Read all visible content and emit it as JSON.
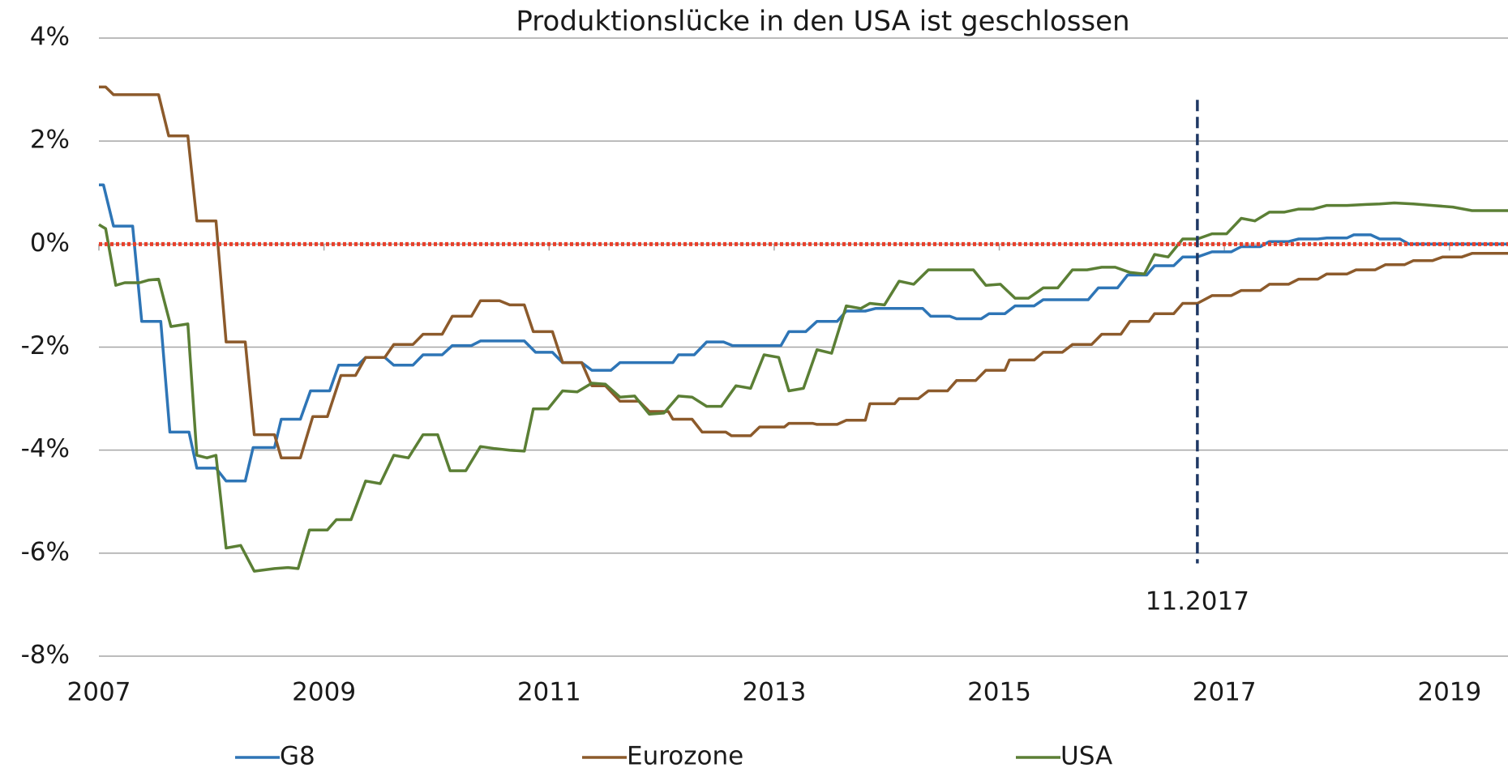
{
  "chart_data": {
    "type": "line",
    "title": "Produktionslücke in den USA ist geschlossen",
    "xlim": [
      2007,
      2019.52
    ],
    "xticks": [
      2007,
      2009,
      2011,
      2013,
      2015,
      2017,
      2019
    ],
    "ylim": [
      -8,
      4
    ],
    "yticks": [
      {
        "value": -8,
        "label": "-8%"
      },
      {
        "value": -6,
        "label": "-6%"
      },
      {
        "value": -4,
        "label": "-4%"
      },
      {
        "value": -2,
        "label": "-2%"
      },
      {
        "value": 0,
        "label": "0%"
      },
      {
        "value": 2,
        "label": "2%"
      },
      {
        "value": 4,
        "label": "4%"
      }
    ],
    "grid": true,
    "reference_line": {
      "y": 0,
      "color": "#e8402b"
    },
    "annotation": {
      "text": "11.2017",
      "x": 2016.76,
      "y": [
        -6.2,
        2.8
      ],
      "color": "#1f3864"
    },
    "series": [
      {
        "name": "G8",
        "color": "#2e75b6",
        "x": [
          2007.0,
          2007.04,
          2007.13,
          2007.3,
          2007.38,
          2007.55,
          2007.63,
          2007.8,
          2007.87,
          2008.04,
          2008.13,
          2008.3,
          2008.37,
          2008.56,
          2008.62,
          2008.79,
          2008.88,
          2009.05,
          2009.13,
          2009.3,
          2009.37,
          2009.54,
          2009.62,
          2009.79,
          2009.88,
          2010.05,
          2010.14,
          2010.31,
          2010.39,
          2010.78,
          2010.88,
          2011.03,
          2011.12,
          2011.29,
          2011.38,
          2011.55,
          2011.63,
          2012.1,
          2012.15,
          2012.29,
          2012.4,
          2012.55,
          2012.63,
          2013.06,
          2013.13,
          2013.28,
          2013.38,
          2013.56,
          2013.64,
          2013.81,
          2013.9,
          2014.32,
          2014.39,
          2014.56,
          2014.62,
          2014.84,
          2014.91,
          2015.05,
          2015.14,
          2015.31,
          2015.39,
          2015.79,
          2015.88,
          2016.05,
          2016.14,
          2016.31,
          2016.38,
          2016.55,
          2016.63,
          2016.76,
          2016.89,
          2017.06,
          2017.15,
          2017.32,
          2017.4,
          2017.57,
          2017.66,
          2017.83,
          2017.91,
          2018.09,
          2018.15,
          2018.3,
          2018.38,
          2018.56,
          2018.64,
          2019.52
        ],
        "values": [
          1.15,
          1.15,
          0.35,
          0.35,
          -1.5,
          -1.5,
          -3.65,
          -3.65,
          -4.35,
          -4.35,
          -4.6,
          -4.6,
          -3.95,
          -3.95,
          -3.4,
          -3.4,
          -2.85,
          -2.85,
          -2.35,
          -2.35,
          -2.2,
          -2.2,
          -2.35,
          -2.35,
          -2.15,
          -2.15,
          -1.97,
          -1.97,
          -1.88,
          -1.88,
          -2.1,
          -2.1,
          -2.3,
          -2.3,
          -2.45,
          -2.45,
          -2.3,
          -2.3,
          -2.15,
          -2.15,
          -1.9,
          -1.9,
          -1.97,
          -1.97,
          -1.7,
          -1.7,
          -1.5,
          -1.5,
          -1.3,
          -1.3,
          -1.25,
          -1.25,
          -1.4,
          -1.4,
          -1.45,
          -1.45,
          -1.35,
          -1.35,
          -1.2,
          -1.2,
          -1.08,
          -1.08,
          -0.85,
          -0.85,
          -0.6,
          -0.6,
          -0.42,
          -0.42,
          -0.25,
          -0.25,
          -0.15,
          -0.15,
          -0.05,
          -0.05,
          0.05,
          0.05,
          0.1,
          0.1,
          0.12,
          0.12,
          0.18,
          0.18,
          0.1,
          0.1,
          0,
          0
        ]
      },
      {
        "name": "Eurozone",
        "color": "#8c5a2b",
        "x": [
          2007.0,
          2007.06,
          2007.13,
          2007.53,
          2007.62,
          2007.79,
          2007.87,
          2008.04,
          2008.13,
          2008.3,
          2008.38,
          2008.56,
          2008.62,
          2008.79,
          2008.9,
          2009.03,
          2009.15,
          2009.28,
          2009.37,
          2009.54,
          2009.62,
          2009.79,
          2009.88,
          2010.05,
          2010.14,
          2010.31,
          2010.39,
          2010.56,
          2010.65,
          2010.78,
          2010.86,
          2011.03,
          2011.12,
          2011.29,
          2011.38,
          2011.5,
          2011.63,
          2011.8,
          2011.89,
          2012.06,
          2012.1,
          2012.27,
          2012.36,
          2012.57,
          2012.62,
          2012.79,
          2012.87,
          2013.09,
          2013.13,
          2013.34,
          2013.38,
          2013.56,
          2013.64,
          2013.81,
          2013.85,
          2014.07,
          2014.11,
          2014.28,
          2014.37,
          2014.54,
          2014.62,
          2014.79,
          2014.88,
          2015.05,
          2015.09,
          2015.31,
          2015.39,
          2015.56,
          2015.65,
          2015.82,
          2015.91,
          2016.08,
          2016.16,
          2016.33,
          2016.38,
          2016.55,
          2016.63,
          2016.76,
          2016.89,
          2017.06,
          2017.15,
          2017.32,
          2017.4,
          2017.57,
          2017.66,
          2017.83,
          2017.91,
          2018.09,
          2018.17,
          2018.34,
          2018.43,
          2018.6,
          2018.68,
          2018.85,
          2018.94,
          2019.11,
          2019.2,
          2019.52
        ],
        "values": [
          3.05,
          3.05,
          2.9,
          2.9,
          2.1,
          2.1,
          0.45,
          0.45,
          -1.9,
          -1.9,
          -3.7,
          -3.7,
          -4.15,
          -4.15,
          -3.35,
          -3.35,
          -2.55,
          -2.55,
          -2.2,
          -2.2,
          -1.95,
          -1.95,
          -1.75,
          -1.75,
          -1.4,
          -1.4,
          -1.1,
          -1.1,
          -1.18,
          -1.18,
          -1.7,
          -1.7,
          -2.3,
          -2.3,
          -2.75,
          -2.75,
          -3.05,
          -3.05,
          -3.25,
          -3.25,
          -3.4,
          -3.4,
          -3.65,
          -3.65,
          -3.72,
          -3.72,
          -3.55,
          -3.55,
          -3.48,
          -3.48,
          -3.5,
          -3.5,
          -3.42,
          -3.42,
          -3.1,
          -3.1,
          -3.0,
          -3.0,
          -2.85,
          -2.85,
          -2.65,
          -2.65,
          -2.45,
          -2.45,
          -2.25,
          -2.25,
          -2.1,
          -2.1,
          -1.95,
          -1.95,
          -1.75,
          -1.75,
          -1.5,
          -1.5,
          -1.35,
          -1.35,
          -1.15,
          -1.15,
          -1.0,
          -1.0,
          -0.9,
          -0.9,
          -0.78,
          -0.78,
          -0.68,
          -0.68,
          -0.58,
          -0.58,
          -0.5,
          -0.5,
          -0.4,
          -0.4,
          -0.32,
          -0.32,
          -0.25,
          -0.25,
          -0.18,
          -0.18
        ]
      },
      {
        "name": "USA",
        "color": "#5b7f35",
        "x": [
          2007.0,
          2007.06,
          2007.15,
          2007.23,
          2007.36,
          2007.44,
          2007.53,
          2007.64,
          2007.79,
          2007.87,
          2007.96,
          2008.04,
          2008.13,
          2008.26,
          2008.38,
          2008.56,
          2008.68,
          2008.77,
          2008.87,
          2009.03,
          2009.11,
          2009.24,
          2009.37,
          2009.5,
          2009.62,
          2009.75,
          2009.88,
          2010.01,
          2010.12,
          2010.26,
          2010.39,
          2010.52,
          2010.65,
          2010.78,
          2010.86,
          2010.99,
          2011.12,
          2011.25,
          2011.38,
          2011.5,
          2011.63,
          2011.76,
          2011.89,
          2012.02,
          2012.15,
          2012.27,
          2012.4,
          2012.53,
          2012.66,
          2012.79,
          2012.91,
          2013.04,
          2013.13,
          2013.26,
          2013.38,
          2013.51,
          2013.64,
          2013.77,
          2013.85,
          2013.98,
          2014.11,
          2014.24,
          2014.37,
          2014.67,
          2014.77,
          2014.88,
          2015.01,
          2015.14,
          2015.26,
          2015.39,
          2015.52,
          2015.65,
          2015.78,
          2015.91,
          2016.03,
          2016.16,
          2016.29,
          2016.38,
          2016.5,
          2016.63,
          2016.76,
          2016.89,
          2017.02,
          2017.15,
          2017.27,
          2017.4,
          2017.53,
          2017.66,
          2017.79,
          2017.91,
          2018.09,
          2018.26,
          2018.38,
          2018.51,
          2018.68,
          2018.85,
          2019.03,
          2019.2,
          2019.52
        ],
        "values": [
          0.38,
          0.3,
          -0.8,
          -0.75,
          -0.75,
          -0.7,
          -0.68,
          -1.6,
          -1.55,
          -4.1,
          -4.15,
          -4.1,
          -5.9,
          -5.85,
          -6.35,
          -6.3,
          -6.28,
          -6.3,
          -5.55,
          -5.55,
          -5.35,
          -5.35,
          -4.6,
          -4.65,
          -4.1,
          -4.15,
          -3.7,
          -3.7,
          -4.4,
          -4.4,
          -3.93,
          -3.97,
          -4.0,
          -4.02,
          -3.2,
          -3.2,
          -2.85,
          -2.87,
          -2.7,
          -2.72,
          -2.97,
          -2.95,
          -3.3,
          -3.28,
          -2.95,
          -2.97,
          -3.15,
          -3.15,
          -2.75,
          -2.8,
          -2.15,
          -2.2,
          -2.85,
          -2.8,
          -2.05,
          -2.12,
          -1.2,
          -1.25,
          -1.15,
          -1.18,
          -0.72,
          -0.78,
          -0.5,
          -0.5,
          -0.5,
          -0.8,
          -0.78,
          -1.05,
          -1.05,
          -0.85,
          -0.85,
          -0.5,
          -0.5,
          -0.45,
          -0.45,
          -0.55,
          -0.58,
          -0.2,
          -0.25,
          0.1,
          0.1,
          0.2,
          0.2,
          0.5,
          0.45,
          0.62,
          0.62,
          0.68,
          0.68,
          0.75,
          0.75,
          0.77,
          0.78,
          0.8,
          0.78,
          0.75,
          0.72,
          0.65,
          0.65
        ]
      }
    ]
  }
}
